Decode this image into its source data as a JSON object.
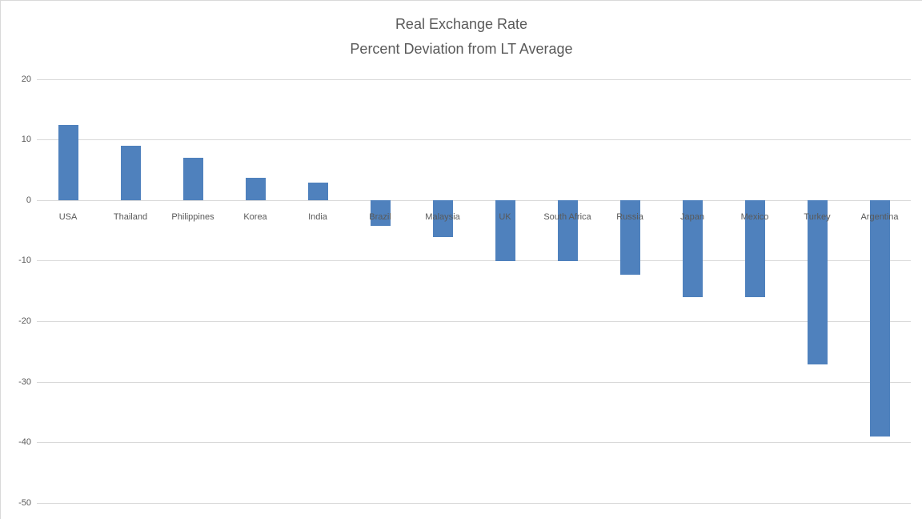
{
  "chart_data": {
    "type": "bar",
    "title": "Real Exchange Rate",
    "subtitle": "Percent Deviation from LT Average",
    "categories": [
      "USA",
      "Thailand",
      "Philippines",
      "Korea",
      "India",
      "Brazil",
      "Malaysia",
      "UK",
      "South Africa",
      "Russia",
      "Japan",
      "Mexico",
      "Turkey",
      "Argentina"
    ],
    "values": [
      12.5,
      9,
      7,
      3.8,
      3,
      -4.2,
      -6,
      -10,
      -10,
      -12.2,
      -16,
      -16,
      -27,
      -39
    ],
    "xlabel": "",
    "ylabel": "",
    "ylim": [
      -50,
      20
    ],
    "yticks": [
      20,
      10,
      0,
      -10,
      -20,
      -30,
      -40,
      -50
    ],
    "grid": true,
    "legend_position": "none",
    "colors": {
      "bar": "#4F81BD",
      "gridline": "#d9d9d9",
      "title_text": "#595959",
      "axis_text": "#595959",
      "chart_border": "#d9d9d9"
    }
  }
}
